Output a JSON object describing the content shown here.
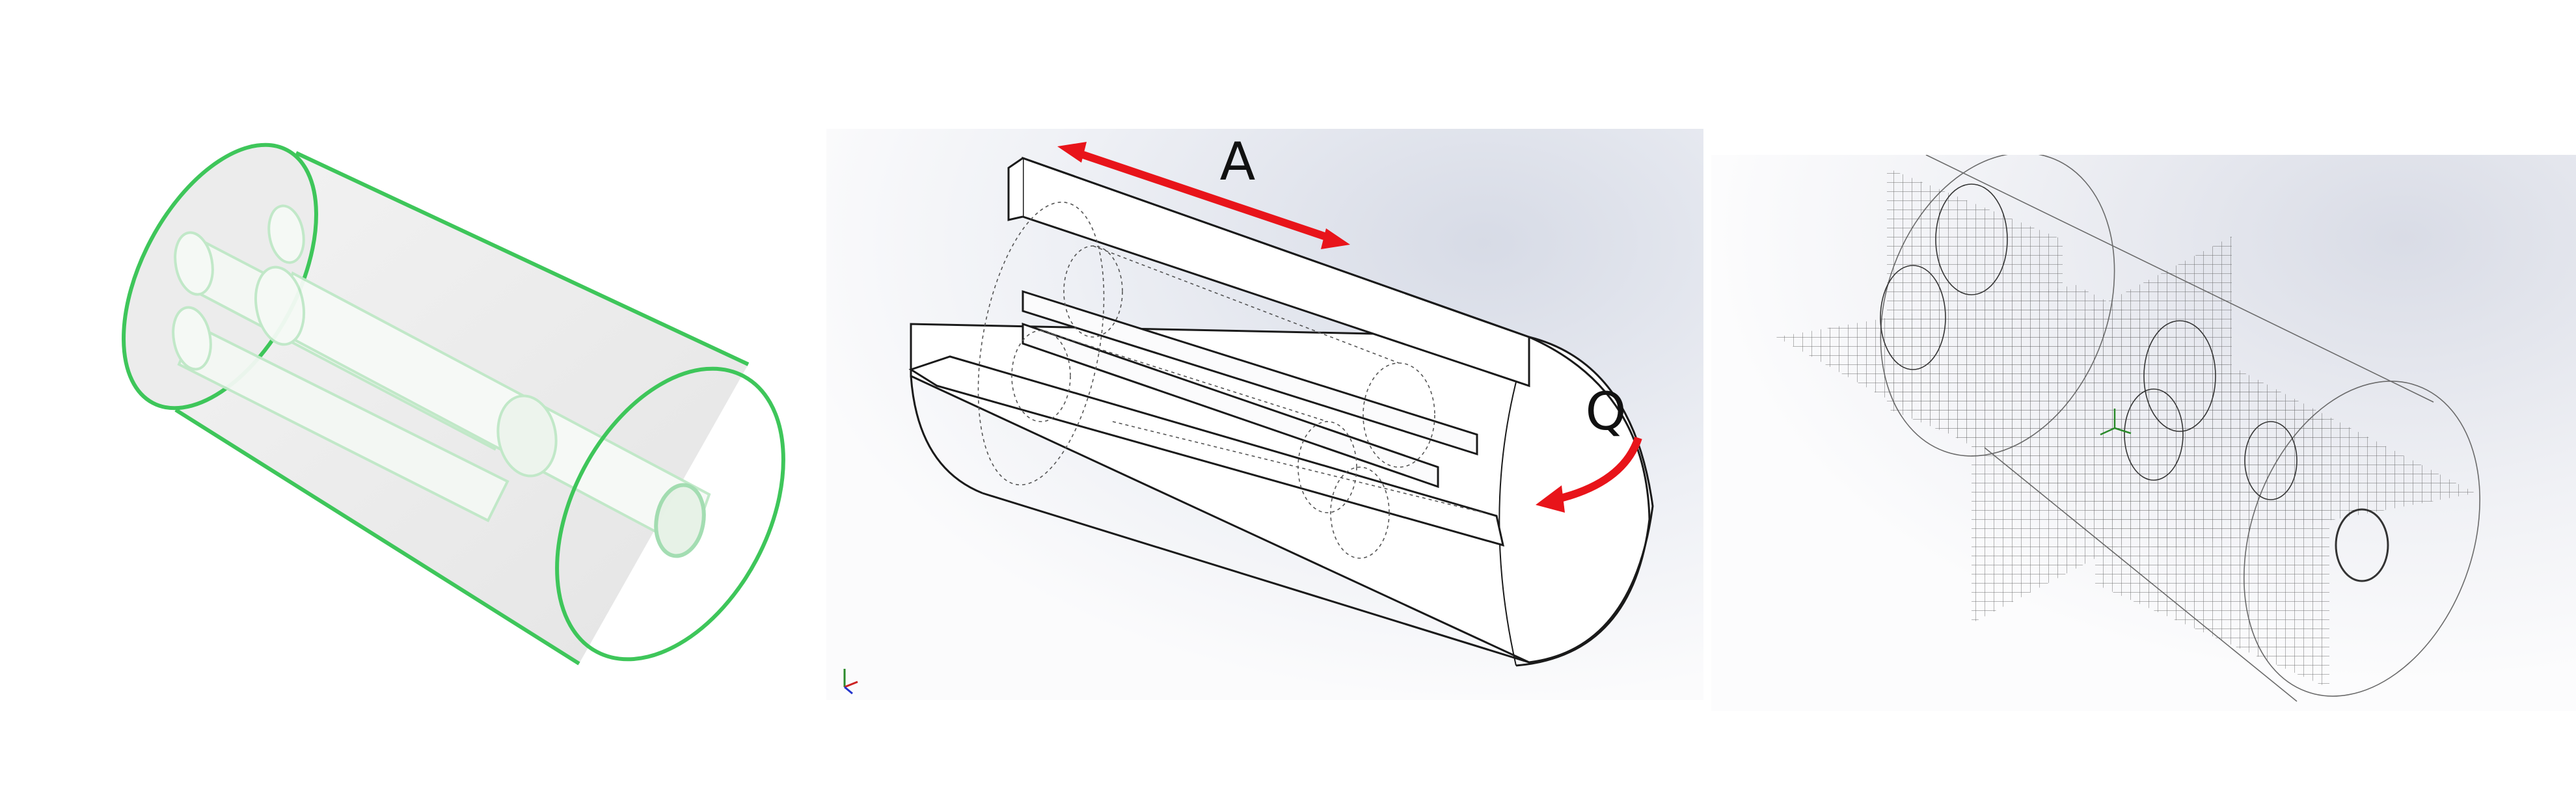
{
  "figure": {
    "panels": [
      {
        "id": "left",
        "description_name": "transparent-cylinder-with-internal-tubes"
      },
      {
        "id": "middle",
        "description_name": "sectioned-cylinder-with-annotations"
      },
      {
        "id": "right",
        "description_name": "wireframe-cylinder-with-grid-planes"
      }
    ]
  },
  "annotations": {
    "arrow_a_label": "A",
    "arrow_q_label": "Q"
  },
  "colors": {
    "outline_green": "#3ec65a",
    "arrow_red": "#e8141a",
    "line_dark": "#1a1a1a"
  }
}
